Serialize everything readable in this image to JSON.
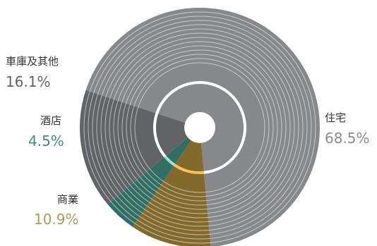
{
  "chart_data": {
    "type": "pie",
    "categories": [
      "住宅",
      "商業",
      "酒店",
      "車庫及其他"
    ],
    "values": [
      68.5,
      10.9,
      4.5,
      16.1
    ],
    "value_labels": [
      "68.5%",
      "10.9%",
      "4.5%",
      "16.1%"
    ],
    "colors": [
      "#87888a",
      "#826a2c",
      "#336e63",
      "#626366"
    ],
    "label_colors": [
      "#8a8b8d",
      "#b39a4e",
      "#3f8f80",
      "#626366"
    ],
    "accent_arc_colors": [
      "#ffffff",
      "#f5c45c",
      "#9fe0cf",
      "#ffffff"
    ]
  }
}
